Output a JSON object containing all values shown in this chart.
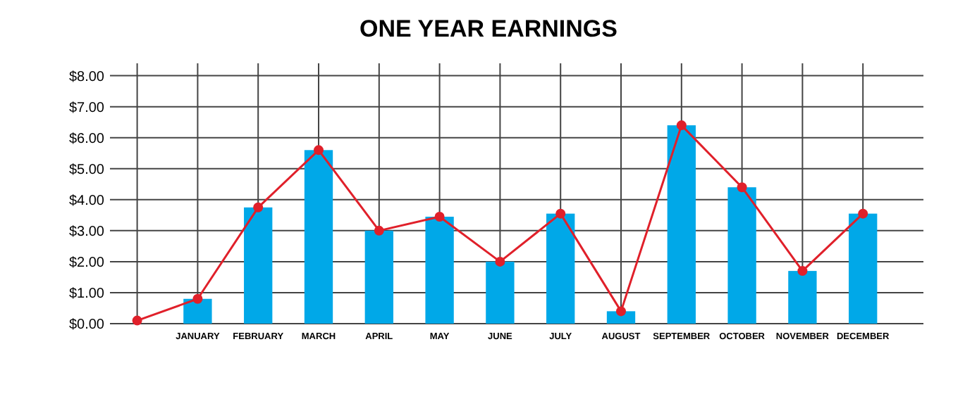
{
  "chart_data": {
    "type": "bar",
    "title": "ONE YEAR EARNINGS",
    "categories": [
      null,
      "JANUARY",
      "FEBRUARY",
      "MARCH",
      "APRIL",
      "MAY",
      "JUNE",
      "JULY",
      "AUGUST",
      "SEPTEMBER",
      "OCTOBER",
      "NOVEMBER",
      "DECEMBER"
    ],
    "series": [
      {
        "color": "#00a8e8",
        "values": [
          null,
          0.8,
          3.75,
          5.6,
          3.0,
          3.45,
          2.0,
          3.55,
          0.4,
          6.4,
          4.4,
          1.7,
          3.55
        ]
      },
      {
        "type": "line",
        "color": "#e0202a",
        "values": [
          0.1,
          0.8,
          3.75,
          5.6,
          3.0,
          3.45,
          2.0,
          3.55,
          0.4,
          6.4,
          4.4,
          1.7,
          3.55
        ]
      }
    ],
    "ylim": [
      0,
      8.4
    ],
    "yticks": [
      {
        "value": 0,
        "label": "$0.00"
      },
      {
        "value": 1,
        "label": "$1.00"
      },
      {
        "value": 2,
        "label": "$2.00"
      },
      {
        "value": 3,
        "label": "$3.00"
      },
      {
        "value": 4,
        "label": "$4.00"
      },
      {
        "value": 5,
        "label": "$5.00"
      },
      {
        "value": 6,
        "label": "$6.00"
      },
      {
        "value": 7,
        "label": "$7.00"
      },
      {
        "value": 8,
        "label": "$8.00"
      }
    ],
    "grid": true,
    "marker": "circle",
    "line_style": "solid"
  }
}
